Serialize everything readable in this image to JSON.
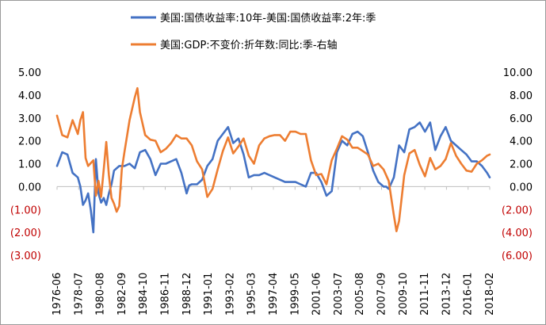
{
  "chart_data": {
    "type": "line",
    "legend": [
      {
        "name": "美国:国债收益率:10年-美国:国债收益率:2年:季",
        "color": "#4472c4"
      },
      {
        "name": "美国:GDP:不变价:折年数:同比:季-右轴",
        "color": "#ed7d31"
      }
    ],
    "legend_placement": "top",
    "grid": false,
    "y_left": {
      "range": [
        -3,
        5
      ],
      "ticks": [
        "5.00",
        "4.00",
        "3.00",
        "2.00",
        "1.00",
        "0.00",
        "(1.00)",
        "(2.00)",
        "(3.00)"
      ],
      "tick_values": [
        5,
        4,
        3,
        2,
        1,
        0,
        -1,
        -2,
        -3
      ],
      "negative_color": "#c00000"
    },
    "y_right": {
      "range": [
        -6,
        10
      ],
      "ticks": [
        "10.00",
        "8.00",
        "6.00",
        "4.00",
        "2.00",
        "0.00",
        "(2.00)",
        "(4.00)",
        "(6.00)"
      ],
      "tick_values": [
        10,
        8,
        6,
        4,
        2,
        0,
        -2,
        -4,
        -6
      ],
      "negative_color": "#c00000"
    },
    "x_range": [
      1976.5,
      2018.25
    ],
    "x_ticks": [
      "1976-06",
      "1978-07",
      "1980-08",
      "1982-09",
      "1984-10",
      "1986-11",
      "1988-12",
      "1991-01",
      "1993-02",
      "1995-03",
      "1997-04",
      "1999-05",
      "2001-06",
      "2003-07",
      "2005-08",
      "2007-09",
      "2009-10",
      "2011-11",
      "2013-12",
      "2016-01",
      "2018-02"
    ],
    "series": [
      {
        "name": "美国:国债收益率:10年-美国:国债收益率:2年:季",
        "axis": "left",
        "color": "#4472c4",
        "x": [
          1976.5,
          1977.0,
          1977.5,
          1978.0,
          1978.5,
          1978.75,
          1979.0,
          1979.25,
          1979.5,
          1979.75,
          1980.0,
          1980.25,
          1980.5,
          1980.75,
          1981.0,
          1981.25,
          1981.5,
          1981.75,
          1982.0,
          1982.5,
          1983.0,
          1983.5,
          1984.0,
          1984.5,
          1985.0,
          1985.5,
          1986.0,
          1986.5,
          1987.0,
          1987.5,
          1988.0,
          1988.5,
          1989.0,
          1989.25,
          1989.5,
          1990.0,
          1990.5,
          1991.0,
          1991.5,
          1992.0,
          1992.5,
          1993.0,
          1993.5,
          1994.0,
          1994.5,
          1995.0,
          1995.5,
          1996.0,
          1996.5,
          1997.0,
          1997.5,
          1998.0,
          1998.5,
          1999.0,
          1999.5,
          2000.0,
          2000.5,
          2001.0,
          2001.5,
          2002.0,
          2002.5,
          2003.0,
          2003.5,
          2004.0,
          2004.5,
          2005.0,
          2005.5,
          2006.0,
          2006.5,
          2007.0,
          2007.5,
          2008.0,
          2008.25,
          2008.5,
          2009.0,
          2009.5,
          2010.0,
          2010.5,
          2011.0,
          2011.5,
          2012.0,
          2012.5,
          2013.0,
          2013.5,
          2014.0,
          2014.5,
          2015.0,
          2015.5,
          2016.0,
          2016.5,
          2017.0,
          2017.5,
          2018.0,
          2018.25
        ],
        "values": [
          0.9,
          1.5,
          1.4,
          0.6,
          0.4,
          0.0,
          -0.8,
          -0.6,
          -0.3,
          -1.0,
          -2.0,
          1.2,
          -0.3,
          -0.7,
          -0.5,
          -0.8,
          -0.3,
          0.1,
          0.7,
          0.9,
          0.9,
          1.0,
          0.8,
          1.5,
          1.6,
          1.2,
          0.5,
          1.0,
          1.0,
          1.1,
          1.2,
          0.6,
          -0.3,
          0.05,
          0.1,
          0.1,
          0.3,
          0.9,
          1.2,
          2.0,
          2.3,
          2.6,
          1.9,
          2.1,
          1.4,
          0.4,
          0.5,
          0.5,
          0.6,
          0.5,
          0.4,
          0.3,
          0.2,
          0.2,
          0.2,
          0.1,
          0.0,
          0.6,
          0.6,
          0.2,
          -0.4,
          -0.2,
          1.5,
          2.0,
          1.8,
          2.3,
          2.4,
          2.2,
          1.5,
          0.7,
          0.2,
          0.0,
          0.0,
          -0.1,
          0.4,
          1.8,
          1.5,
          2.5,
          2.6,
          2.8,
          2.4,
          2.8,
          1.6,
          2.2,
          2.6,
          2.0,
          1.8,
          1.6,
          1.4,
          1.1,
          1.1,
          0.9,
          0.6,
          0.4
        ]
      },
      {
        "name": "美国:GDP:不变价:折年数:同比:季-右轴",
        "axis": "right",
        "color": "#ed7d31",
        "x": [
          1976.5,
          1977.0,
          1977.5,
          1978.0,
          1978.5,
          1978.75,
          1979.0,
          1979.25,
          1979.5,
          1980.0,
          1980.25,
          1980.5,
          1980.75,
          1981.0,
          1981.25,
          1981.5,
          1981.75,
          1982.0,
          1982.25,
          1982.5,
          1982.75,
          1983.0,
          1983.5,
          1984.0,
          1984.25,
          1984.5,
          1985.0,
          1985.5,
          1986.0,
          1986.5,
          1987.0,
          1987.5,
          1988.0,
          1988.5,
          1989.0,
          1989.5,
          1990.0,
          1990.5,
          1991.0,
          1991.5,
          1992.0,
          1992.5,
          1993.0,
          1993.5,
          1994.0,
          1994.5,
          1995.0,
          1995.5,
          1996.0,
          1996.5,
          1997.0,
          1997.5,
          1998.0,
          1998.5,
          1999.0,
          1999.5,
          2000.0,
          2000.5,
          2001.0,
          2001.5,
          2002.0,
          2002.5,
          2003.0,
          2003.5,
          2004.0,
          2004.5,
          2005.0,
          2005.5,
          2006.0,
          2006.5,
          2007.0,
          2007.5,
          2008.0,
          2008.5,
          2009.0,
          2009.25,
          2009.5,
          2010.0,
          2010.5,
          2011.0,
          2011.5,
          2012.0,
          2012.5,
          2013.0,
          2013.5,
          2014.0,
          2014.5,
          2015.0,
          2015.5,
          2016.0,
          2016.5,
          2017.0,
          2017.5,
          2018.0,
          2018.25
        ],
        "values": [
          6.2,
          4.5,
          4.3,
          5.8,
          4.6,
          5.8,
          6.5,
          2.5,
          1.8,
          2.3,
          -0.8,
          0.5,
          -0.9,
          1.5,
          3.9,
          1.0,
          -1.0,
          -1.5,
          -2.2,
          -1.7,
          1.5,
          3.0,
          5.8,
          7.8,
          8.6,
          6.5,
          4.5,
          4.1,
          4.0,
          3.0,
          3.3,
          3.8,
          4.5,
          4.2,
          4.2,
          3.6,
          2.2,
          1.5,
          -0.9,
          -0.2,
          1.5,
          3.1,
          4.3,
          2.9,
          3.5,
          4.2,
          2.7,
          2.0,
          3.6,
          4.2,
          4.4,
          4.5,
          4.5,
          4.0,
          4.8,
          4.8,
          4.6,
          4.6,
          2.3,
          1.0,
          1.1,
          0.2,
          2.3,
          3.3,
          4.4,
          4.1,
          3.4,
          3.4,
          3.1,
          2.8,
          1.8,
          2.0,
          1.5,
          0.5,
          -2.5,
          -3.9,
          -3.0,
          1.0,
          2.9,
          3.2,
          1.9,
          0.9,
          2.5,
          1.5,
          1.8,
          2.4,
          3.8,
          2.7,
          2.0,
          1.4,
          1.3,
          2.0,
          2.3,
          2.7,
          2.8
        ]
      }
    ]
  }
}
